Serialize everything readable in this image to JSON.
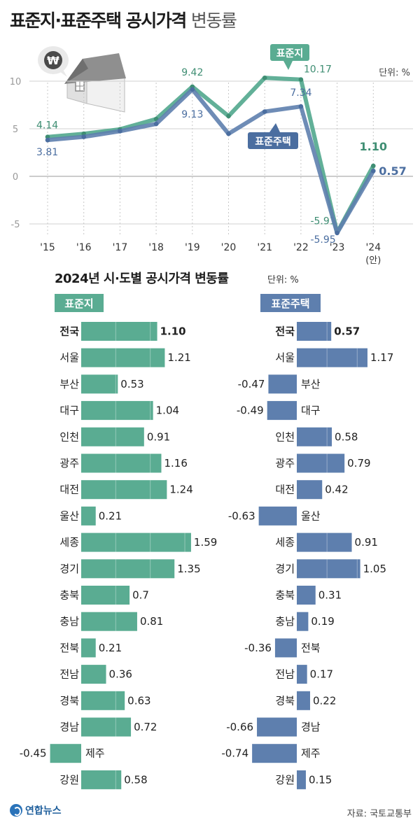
{
  "title": {
    "bold": "표준지·표준주택 공시가격",
    "light": "변동률"
  },
  "colors": {
    "land": "#5aac92",
    "house": "#5e7fae",
    "land_dark": "#3f8e73",
    "house_dark": "#4b6ea0",
    "grid": "#d0d0d0"
  },
  "chart_data": [
    {
      "type": "line",
      "title": "표준지·표준주택 공시가격 변동률",
      "unit_label": "단위: %",
      "x": [
        "'15",
        "'16",
        "'17",
        "'18",
        "'19",
        "'20",
        "'21",
        "'22",
        "'23",
        "'24"
      ],
      "x_sub": [
        "",
        "",
        "",
        "",
        "",
        "",
        "",
        "",
        "",
        "(안)"
      ],
      "y_ticks": [
        "10",
        "5",
        "0",
        "-5"
      ],
      "ylim": [
        -6.5,
        11
      ],
      "series": [
        {
          "name": "표준지",
          "values": [
            4.14,
            4.47,
            4.94,
            6.02,
            9.42,
            6.33,
            10.35,
            10.17,
            -5.91,
            1.1
          ],
          "labels": [
            "4.14",
            "",
            "",
            "",
            "9.42",
            "",
            "",
            "10.17",
            "-5.91",
            "1.10"
          ]
        },
        {
          "name": "표준주택",
          "values": [
            3.81,
            4.15,
            4.75,
            5.51,
            9.13,
            4.47,
            6.8,
            7.34,
            -5.95,
            0.57
          ],
          "labels": [
            "3.81",
            "",
            "",
            "",
            "9.13",
            "",
            "",
            "7.34",
            "-5.95",
            "0.57"
          ]
        }
      ]
    },
    {
      "type": "bar",
      "orientation": "horizontal",
      "title": "2024년 시·도별 공시가격 변동률",
      "unit_label": "단위: %",
      "categories": [
        "전국",
        "서울",
        "부산",
        "대구",
        "인천",
        "광주",
        "대전",
        "울산",
        "세종",
        "경기",
        "충북",
        "충남",
        "전북",
        "전남",
        "경북",
        "경남",
        "제주",
        "강원"
      ],
      "series": [
        {
          "name": "표준지",
          "values": [
            1.1,
            1.21,
            0.53,
            1.04,
            0.91,
            1.16,
            1.24,
            0.21,
            1.59,
            1.35,
            0.7,
            0.81,
            0.21,
            0.36,
            0.63,
            0.72,
            -0.45,
            0.58
          ],
          "labels": [
            "1.10",
            "1.21",
            "0.53",
            "1.04",
            "0.91",
            "1.16",
            "1.24",
            "0.21",
            "1.59",
            "1.35",
            "0.7",
            "0.81",
            "0.21",
            "0.36",
            "0.63",
            "0.72",
            "-0.45",
            "0.58"
          ]
        },
        {
          "name": "표준주택",
          "values": [
            0.57,
            1.17,
            -0.47,
            -0.49,
            0.58,
            0.79,
            0.42,
            -0.63,
            0.91,
            1.05,
            0.31,
            0.19,
            -0.36,
            0.17,
            0.22,
            -0.66,
            -0.74,
            0.15
          ],
          "labels": [
            "0.57",
            "1.17",
            "-0.47",
            "-0.49",
            "0.58",
            "0.79",
            "0.42",
            "-0.63",
            "0.91",
            "1.05",
            "0.31",
            "0.19",
            "-0.36",
            "0.17",
            "0.22",
            "-0.66",
            "-0.74",
            "0.15"
          ]
        }
      ]
    }
  ],
  "footer": {
    "source": "자료: 국토교통부",
    "logo": "연합뉴스"
  }
}
